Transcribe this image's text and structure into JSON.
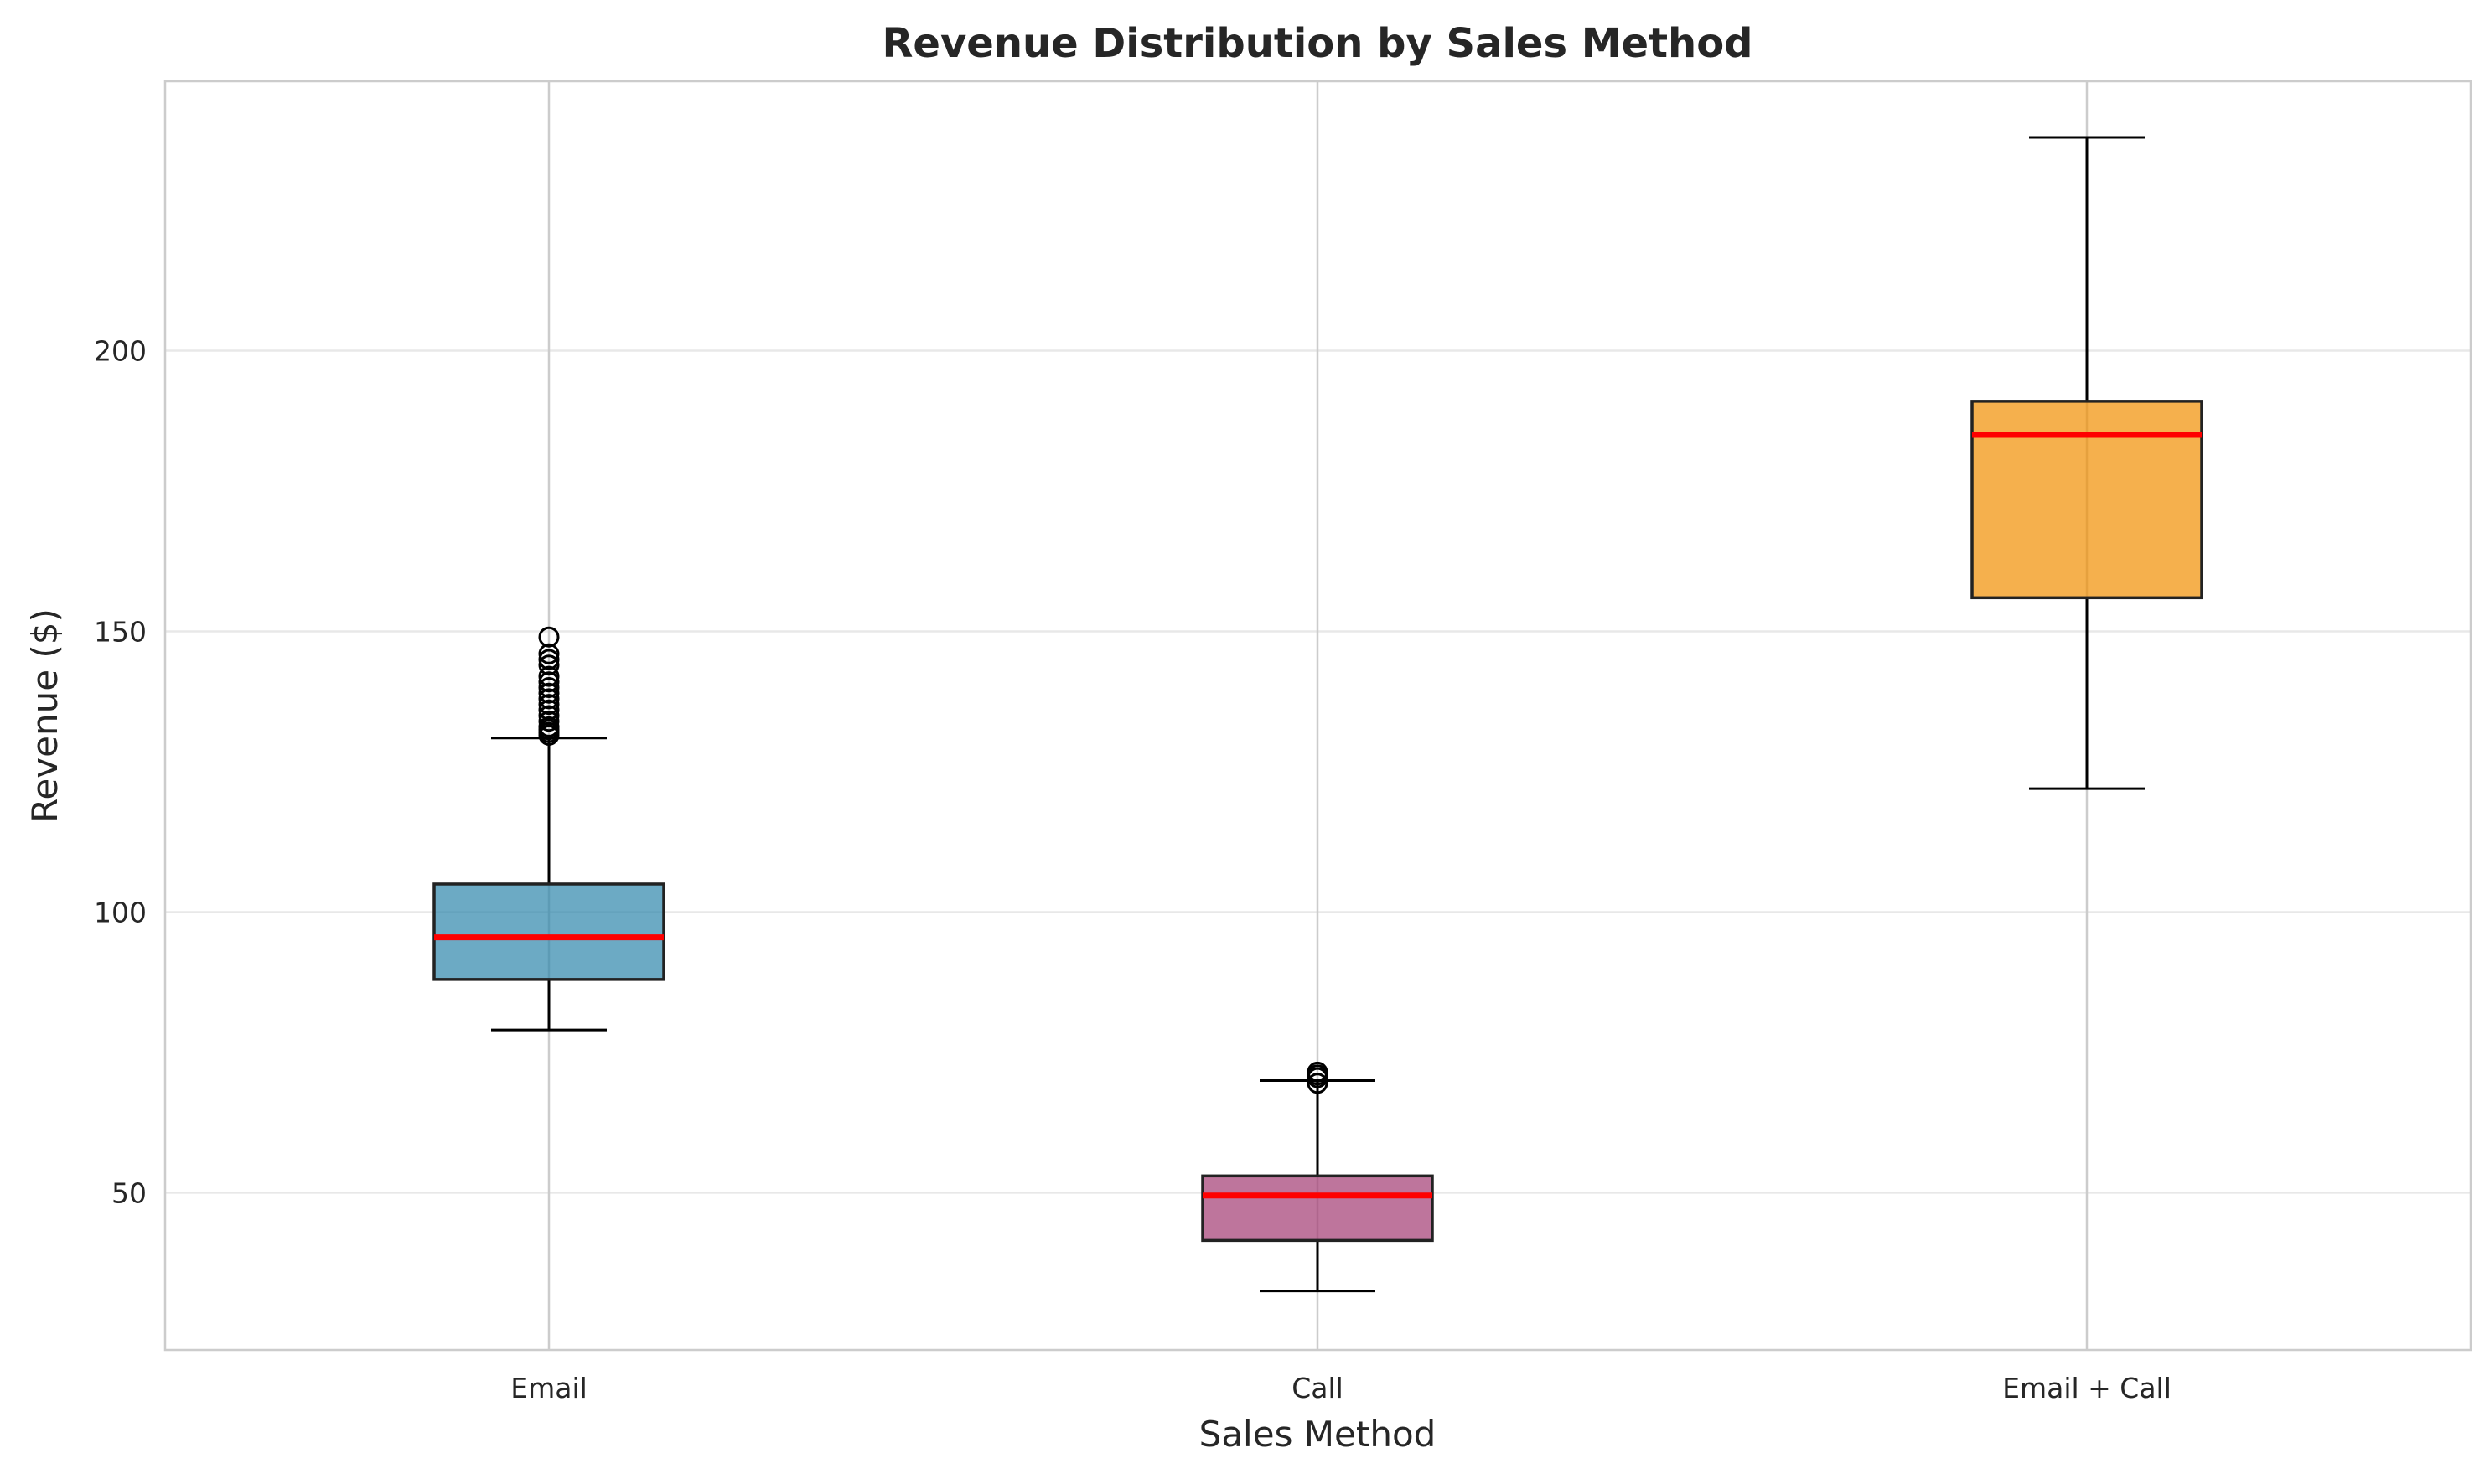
{
  "chart_data": {
    "type": "box",
    "title": "Revenue Distribution by Sales Method",
    "xlabel": "Sales Method",
    "ylabel": "Revenue ($)",
    "categories": [
      "Email",
      "Call",
      "Email + Call"
    ],
    "ylim": [
      22,
      248
    ],
    "yticks": [
      50,
      100,
      150,
      200
    ],
    "grid": true,
    "series": [
      {
        "category": "Email",
        "color": "#2E86AB",
        "whisker_low": 79,
        "q1": 88,
        "median": 95.5,
        "q3": 105,
        "whisker_high": 131,
        "outliers": [
          131.5,
          132,
          132.5,
          133,
          134,
          135,
          136,
          137,
          138,
          139,
          140,
          141,
          142,
          144,
          145,
          146,
          149
        ]
      },
      {
        "category": "Call",
        "color": "#A23B72",
        "whisker_low": 32.5,
        "q1": 41.5,
        "median": 49.5,
        "q3": 53,
        "whisker_high": 70,
        "outliers": [
          69.5,
          70.5,
          71,
          71.5
        ]
      },
      {
        "category": "Email + Call",
        "color": "#F18F01",
        "whisker_low": 122,
        "q1": 156,
        "median": 185,
        "q3": 191,
        "whisker_high": 238,
        "outliers": []
      }
    ],
    "median_color": "#FF0000"
  }
}
